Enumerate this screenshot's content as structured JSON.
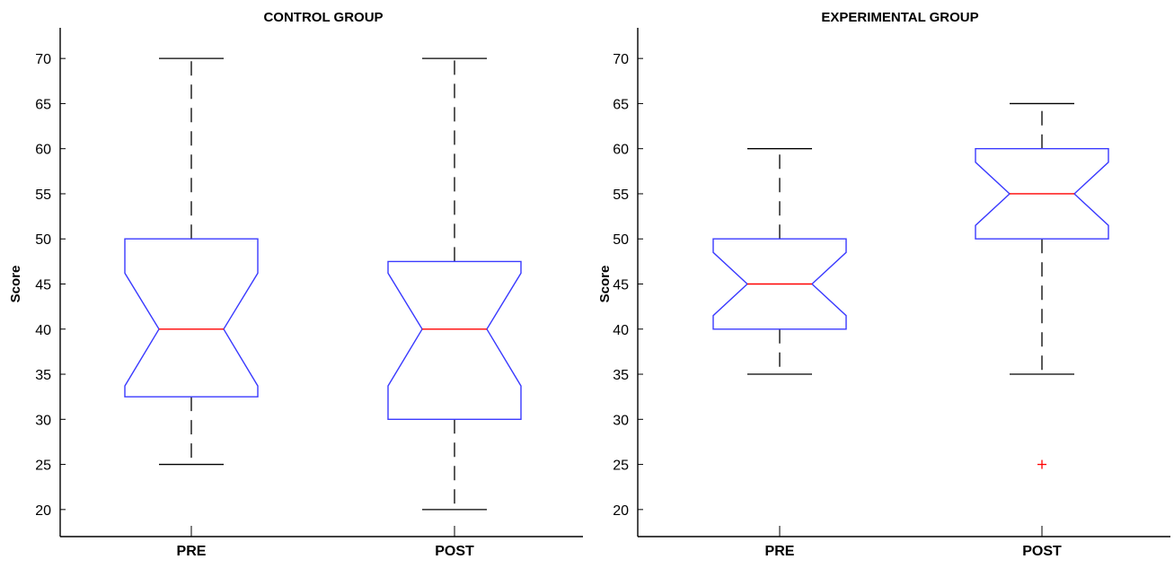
{
  "chart_data": [
    {
      "type": "boxplot",
      "title": "CONTROL GROUP",
      "ylabel": "Score",
      "xlabel": "",
      "categories": [
        "PRE",
        "POST"
      ],
      "ylim": [
        17,
        73
      ],
      "yticks": [
        20,
        25,
        30,
        35,
        40,
        45,
        50,
        55,
        60,
        65,
        70
      ],
      "notched": true,
      "boxes": [
        {
          "category": "PRE",
          "whisker_low": 25,
          "q1": 32.5,
          "median": 40,
          "q3": 50,
          "whisker_high": 70,
          "notch_low": 33.7,
          "notch_high": 46.2,
          "outliers": []
        },
        {
          "category": "POST",
          "whisker_low": 20,
          "q1": 30,
          "median": 40,
          "q3": 47.5,
          "whisker_high": 70,
          "notch_low": 33.7,
          "notch_high": 46.2,
          "outliers": []
        }
      ]
    },
    {
      "type": "boxplot",
      "title": "EXPERIMENTAL GROUP",
      "ylabel": "Score",
      "xlabel": "",
      "categories": [
        "PRE",
        "POST"
      ],
      "ylim": [
        17,
        73
      ],
      "yticks": [
        20,
        25,
        30,
        35,
        40,
        45,
        50,
        55,
        60,
        65,
        70
      ],
      "notched": true,
      "boxes": [
        {
          "category": "PRE",
          "whisker_low": 35,
          "q1": 40,
          "median": 45,
          "q3": 50,
          "whisker_high": 60,
          "notch_low": 41.5,
          "notch_high": 48.5,
          "outliers": []
        },
        {
          "category": "POST",
          "whisker_low": 35,
          "q1": 50,
          "median": 55,
          "q3": 60,
          "whisker_high": 65,
          "notch_low": 51.5,
          "notch_high": 58.5,
          "outliers": [
            25
          ]
        }
      ]
    }
  ],
  "colors": {
    "box": "#3a3aff",
    "median": "#ff0000",
    "whisker": "#000000",
    "outlier": "#ff0000",
    "axis": "#000000"
  }
}
